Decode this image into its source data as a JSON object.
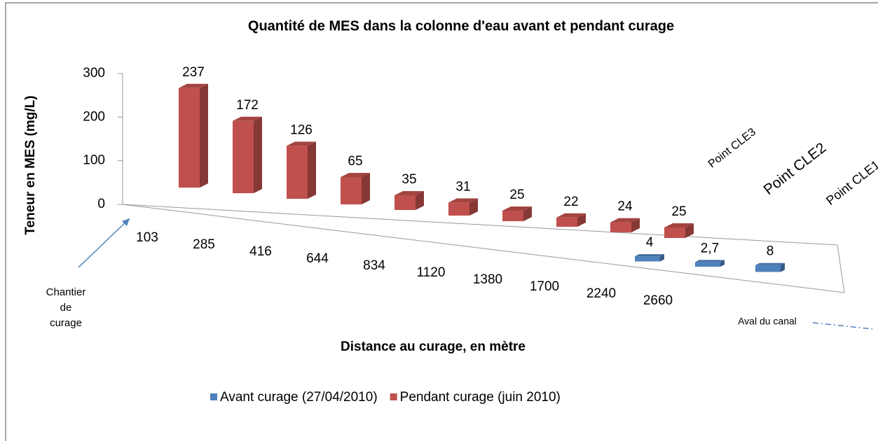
{
  "chart_data": {
    "type": "bar3d",
    "title": "Quantité de MES dans la colonne d'eau avant et pendant curage",
    "y_label": "Teneur en MES (mg/L)",
    "x_label": "Distance au curage, en mètre",
    "categories": [
      "103",
      "285",
      "416",
      "644",
      "834",
      "1120",
      "1380",
      "1700",
      "2240",
      "2660",
      null,
      null
    ],
    "series": [
      {
        "name": "Avant curage (27/04/2010)",
        "color": "#4f81bd",
        "values": [
          null,
          null,
          null,
          null,
          null,
          null,
          null,
          null,
          null,
          4,
          2.7,
          8
        ],
        "value_labels": [
          null,
          null,
          null,
          null,
          null,
          null,
          null,
          null,
          null,
          "4",
          "2,7",
          "8"
        ]
      },
      {
        "name": "Pendant curage (juin 2010)",
        "color": "#c0504d",
        "values": [
          237,
          172,
          126,
          65,
          35,
          31,
          25,
          22,
          24,
          25,
          null,
          null
        ]
      }
    ],
    "ylim": [
      0,
      300
    ],
    "yticks": [
      0,
      100,
      200,
      300
    ],
    "annotations": [
      "Chantier de curage",
      "Aval du canal",
      "Point CLE3",
      "Point CLE2",
      "Point CLE1"
    ],
    "legend": "bottom"
  }
}
